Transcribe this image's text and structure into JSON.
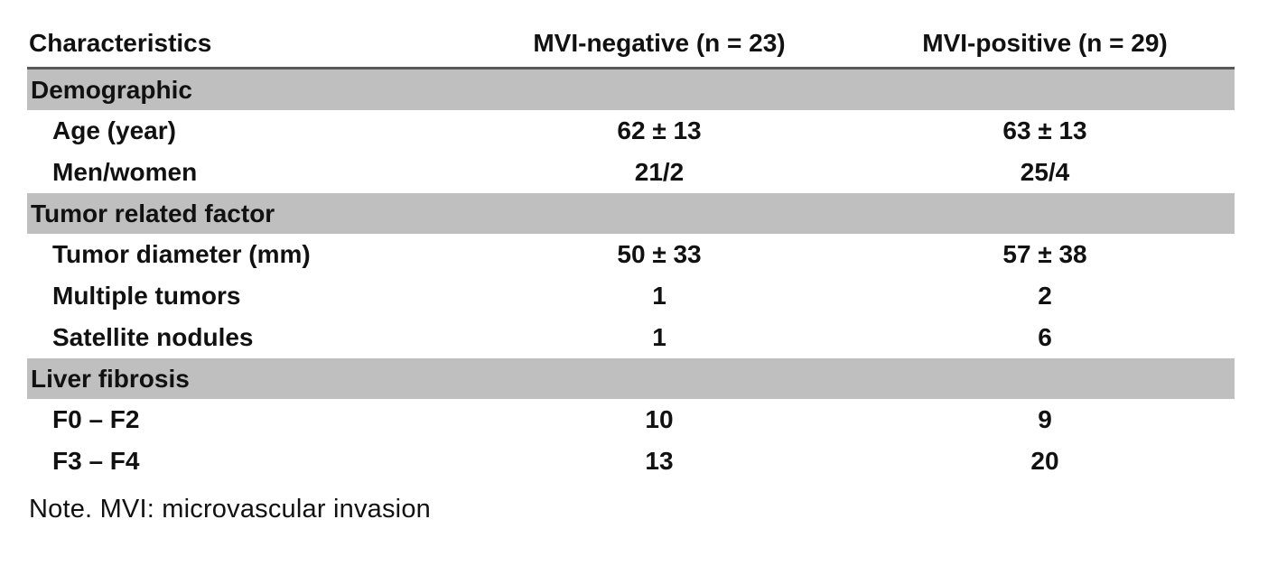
{
  "table": {
    "columns": [
      "Characteristics",
      "MVI-negative (n = 23)",
      "MVI-positive (n = 29)"
    ],
    "sections": [
      {
        "header": "Demographic",
        "rows": [
          {
            "label": "Age (year)",
            "values": [
              "62 ± 13",
              "63 ± 13"
            ]
          },
          {
            "label": "Men/women",
            "values": [
              "21/2",
              "25/4"
            ]
          }
        ]
      },
      {
        "header": "Tumor related factor",
        "rows": [
          {
            "label": "Tumor diameter (mm)",
            "values": [
              "50 ± 33",
              "57 ± 38"
            ]
          },
          {
            "label": "Multiple tumors",
            "values": [
              "1",
              "2"
            ]
          },
          {
            "label": "Satellite nodules",
            "values": [
              "1",
              "6"
            ]
          }
        ]
      },
      {
        "header": "Liver fibrosis",
        "rows": [
          {
            "label": "F0 – F2",
            "values": [
              "10",
              "9"
            ]
          },
          {
            "label": "F3 – F4",
            "values": [
              "13",
              "20"
            ]
          }
        ]
      }
    ],
    "note": "Note. MVI: microvascular invasion"
  },
  "colors": {
    "background": "#ffffff",
    "text": "#111111",
    "section_band": "#bfbfbf",
    "header_rule": "#595959"
  }
}
